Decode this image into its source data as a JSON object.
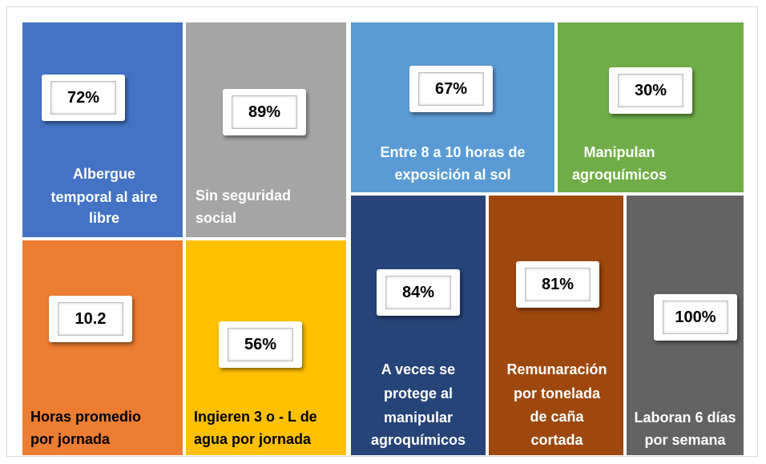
{
  "tiles": [
    {
      "value": "72%",
      "label": [
        "Albergue",
        "temporal al aire",
        "libre"
      ],
      "color": "#4472c4",
      "text_color": "#ffffff"
    },
    {
      "value": "89%",
      "label": [
        "Sin seguridad",
        "social"
      ],
      "color": "#a5a5a5",
      "text_color": "#ffffff"
    },
    {
      "value": "10.2",
      "label": [
        "Horas promedio",
        "por jornada"
      ],
      "color": "#ed7d31",
      "text_color": "#000000"
    },
    {
      "value": "56%",
      "label": [
        "Ingieren 3 o - L de",
        "agua por jornada"
      ],
      "color": "#ffc000",
      "text_color": "#000000"
    },
    {
      "value": "67%",
      "label": [
        "Entre 8 a 10 horas de",
        "exposición al sol"
      ],
      "color": "#5b9bd5",
      "text_color": "#ffffff"
    },
    {
      "value": "30%",
      "label": [
        "Manipulan",
        "agroquímicos"
      ],
      "color": "#70ad47",
      "text_color": "#ffffff"
    },
    {
      "value": "84%",
      "label": [
        "A veces se",
        "protege al",
        "manipular",
        "agroquímicos"
      ],
      "color": "#264478",
      "text_color": "#ffffff"
    },
    {
      "value": "81%",
      "label": [
        "Remunaración",
        "por tonelada",
        "de caña",
        "cortada"
      ],
      "color": "#9e480e",
      "text_color": "#ffffff"
    },
    {
      "value": "100%",
      "label": [
        "Laboran 6 días",
        "por semana"
      ],
      "color": "#636363",
      "text_color": "#ffffff"
    }
  ]
}
